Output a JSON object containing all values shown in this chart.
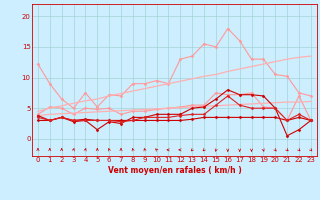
{
  "x": [
    0,
    1,
    2,
    3,
    4,
    5,
    6,
    7,
    8,
    9,
    10,
    11,
    12,
    13,
    14,
    15,
    16,
    17,
    18,
    19,
    20,
    21,
    22,
    23
  ],
  "series": [
    {
      "name": "light_pink_upper",
      "color": "#ff9999",
      "linewidth": 0.8,
      "marker": "D",
      "markersize": 1.5,
      "y": [
        12.2,
        9.0,
        6.5,
        5.0,
        7.5,
        5.2,
        7.2,
        7.0,
        9.0,
        9.0,
        9.5,
        9.0,
        13.0,
        13.5,
        15.5,
        15.0,
        18.0,
        16.0,
        13.0,
        13.0,
        10.5,
        10.2,
        7.5,
        7.0
      ]
    },
    {
      "name": "light_pink_lower",
      "color": "#ff9999",
      "linewidth": 0.8,
      "marker": "D",
      "markersize": 1.5,
      "y": [
        4.0,
        5.2,
        5.0,
        4.0,
        5.0,
        4.8,
        5.0,
        4.0,
        4.5,
        4.5,
        4.8,
        5.0,
        5.2,
        5.5,
        5.5,
        7.5,
        7.2,
        7.2,
        7.5,
        5.2,
        5.0,
        3.0,
        7.0,
        3.0
      ]
    },
    {
      "name": "trend_upper",
      "color": "#ffb0b0",
      "linewidth": 0.9,
      "marker": null,
      "markersize": 0,
      "y": [
        4.5,
        5.0,
        5.4,
        5.8,
        6.2,
        6.5,
        7.0,
        7.4,
        7.8,
        8.2,
        8.6,
        9.0,
        9.4,
        9.8,
        10.2,
        10.5,
        11.0,
        11.4,
        11.8,
        12.2,
        12.6,
        13.0,
        13.3,
        13.5
      ]
    },
    {
      "name": "trend_lower",
      "color": "#ffb0b0",
      "linewidth": 0.9,
      "marker": null,
      "markersize": 0,
      "y": [
        3.8,
        4.0,
        4.1,
        4.2,
        4.3,
        4.4,
        4.5,
        4.6,
        4.7,
        4.8,
        4.9,
        5.0,
        5.1,
        5.2,
        5.3,
        5.4,
        5.5,
        5.6,
        5.7,
        5.8,
        5.9,
        6.0,
        6.0,
        6.1
      ]
    },
    {
      "name": "dark_red_main",
      "color": "#cc0000",
      "linewidth": 0.8,
      "marker": "D",
      "markersize": 1.5,
      "y": [
        3.8,
        3.0,
        3.5,
        2.8,
        3.0,
        1.5,
        2.8,
        2.5,
        3.5,
        3.5,
        4.0,
        4.0,
        4.0,
        5.0,
        5.2,
        6.5,
        8.0,
        7.2,
        7.2,
        7.0,
        5.0,
        0.5,
        1.5,
        3.0
      ]
    },
    {
      "name": "dark_red_lower",
      "color": "#cc0000",
      "linewidth": 0.8,
      "marker": "D",
      "markersize": 1.5,
      "y": [
        3.0,
        3.0,
        3.5,
        3.0,
        3.2,
        3.0,
        3.0,
        3.0,
        3.0,
        3.0,
        3.0,
        3.0,
        3.0,
        3.2,
        3.5,
        3.5,
        3.5,
        3.5,
        3.5,
        3.5,
        3.5,
        3.0,
        3.5,
        3.0
      ]
    },
    {
      "name": "medium_red",
      "color": "#dd2222",
      "linewidth": 0.8,
      "marker": "D",
      "markersize": 1.5,
      "y": [
        3.5,
        3.0,
        3.5,
        3.0,
        3.0,
        3.0,
        3.0,
        2.8,
        3.0,
        3.5,
        3.5,
        3.5,
        3.8,
        4.0,
        4.0,
        5.5,
        7.0,
        5.5,
        5.0,
        5.0,
        5.0,
        3.0,
        4.0,
        3.0
      ]
    }
  ],
  "xlabel": "Vent moyen/en rafales ( km/h )",
  "xlabel_color": "#cc0000",
  "xlabel_fontsize": 5.5,
  "xticks": [
    0,
    1,
    2,
    3,
    4,
    5,
    6,
    7,
    8,
    9,
    10,
    11,
    12,
    13,
    14,
    15,
    16,
    17,
    18,
    19,
    20,
    21,
    22,
    23
  ],
  "yticks": [
    0,
    5,
    10,
    15,
    20
  ],
  "ylim": [
    -2.8,
    22
  ],
  "xlim": [
    -0.5,
    23.5
  ],
  "background_color": "#cceeff",
  "grid_color": "#99cccc",
  "tick_color": "#cc0000",
  "tick_fontsize": 5
}
